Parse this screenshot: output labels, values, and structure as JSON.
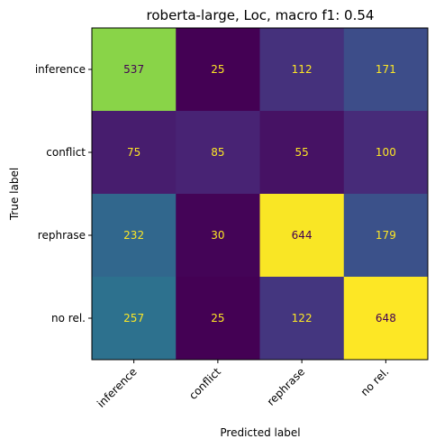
{
  "chart_data": {
    "type": "heatmap",
    "title": "roberta-large, Loc, macro f1: 0.54",
    "xlabel": "Predicted label",
    "ylabel": "True label",
    "x_categories": [
      "inference",
      "conflict",
      "rephrase",
      "no rel."
    ],
    "y_categories": [
      "inference",
      "conflict",
      "rephrase",
      "no rel."
    ],
    "values": [
      [
        537,
        25,
        112,
        171
      ],
      [
        75,
        85,
        55,
        100
      ],
      [
        232,
        30,
        644,
        179
      ],
      [
        257,
        25,
        122,
        648
      ]
    ],
    "colormap": "viridis",
    "value_range": [
      25,
      648
    ],
    "text_color_dark": "#440154",
    "text_color_light": "#fde725",
    "grid": false
  }
}
